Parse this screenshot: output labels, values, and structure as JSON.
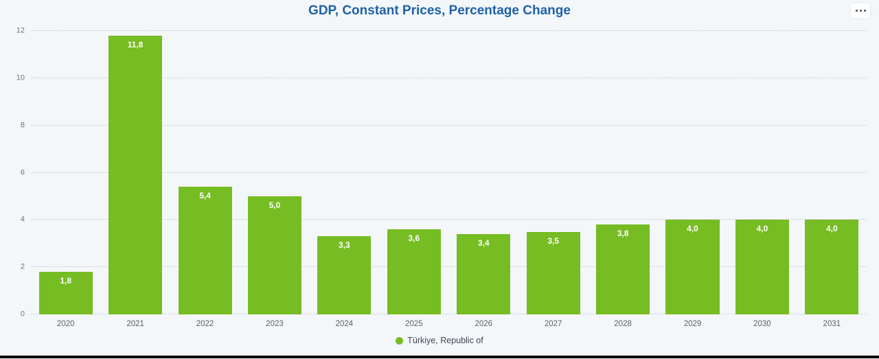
{
  "header": {
    "title": "GDP, Constant Prices, Percentage Change",
    "menu_icon": "ellipsis-menu-icon"
  },
  "legend": {
    "label": "Türkiye, Republic of",
    "marker_color": "#76bc23"
  },
  "colors": {
    "background": "#f4f7fa",
    "bar": "#76bc23",
    "title": "#1e61a8",
    "gridline": "#c3c7cb",
    "axis_label": "#697076",
    "value_label": "#ffffff",
    "bottom_rule": "#0b0b0b"
  },
  "chart_data": {
    "type": "bar",
    "title": "GDP, Constant Prices, Percentage Change",
    "categories": [
      "2020",
      "2021",
      "2022",
      "2023",
      "2024",
      "2025",
      "2026",
      "2027",
      "2028",
      "2029",
      "2030",
      "2031"
    ],
    "series": [
      {
        "name": "Türkiye, Republic of",
        "values": [
          1.8,
          11.8,
          5.4,
          5.0,
          3.3,
          3.6,
          3.4,
          3.5,
          3.8,
          4.0,
          4.0,
          4.0
        ],
        "value_labels": [
          "1,8",
          "11,8",
          "5,4",
          "5,0",
          "3,3",
          "3,6",
          "3,4",
          "3,5",
          "3,8",
          "4,0",
          "4,0",
          "4,0"
        ],
        "color": "#76bc23"
      }
    ],
    "xlabel": "",
    "ylabel": "",
    "ylim": [
      0,
      12
    ],
    "ytick_step": 2,
    "yticks": [
      0,
      2,
      4,
      6,
      8,
      10,
      12
    ],
    "grid": "horizontal-dotted",
    "legend_position": "bottom-center",
    "bar_value_labels_inside": true,
    "decimal_separator": ","
  }
}
